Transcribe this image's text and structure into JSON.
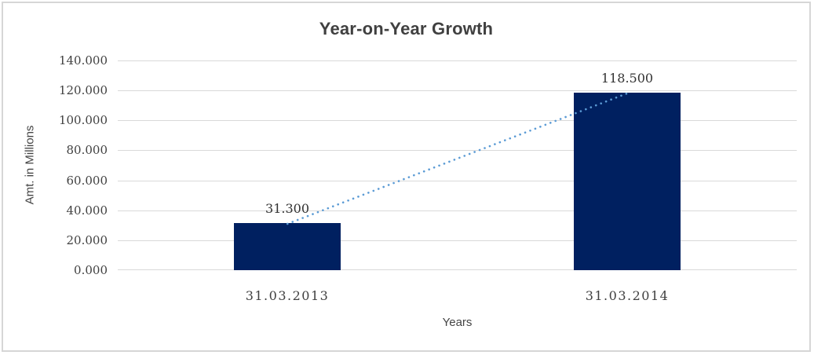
{
  "frame": {
    "background": "#FFFFFF",
    "border_color": "#D6D6D6"
  },
  "chart_data": {
    "type": "bar",
    "title": "Year-on-Year Growth",
    "categories": [
      "31.03.2013",
      "31.03.2014"
    ],
    "values": [
      31.3,
      118.5
    ],
    "data_labels": [
      "31.300",
      "118.500"
    ],
    "xlabel": "Years",
    "ylabel": "Amt. in Millions",
    "ylim": [
      0,
      140
    ],
    "ytick_step": 20,
    "ytick_labels": [
      "140.000",
      "120.000",
      "100.000",
      "80.000",
      "60.000",
      "40.000",
      "20.000",
      "0.000"
    ],
    "grid": true,
    "gridline_color": "#D9D9D9",
    "legend": false,
    "bar_color": "#002060",
    "trendline": {
      "type": "linear",
      "style": "dotted",
      "color": "#5B9BD5"
    }
  }
}
